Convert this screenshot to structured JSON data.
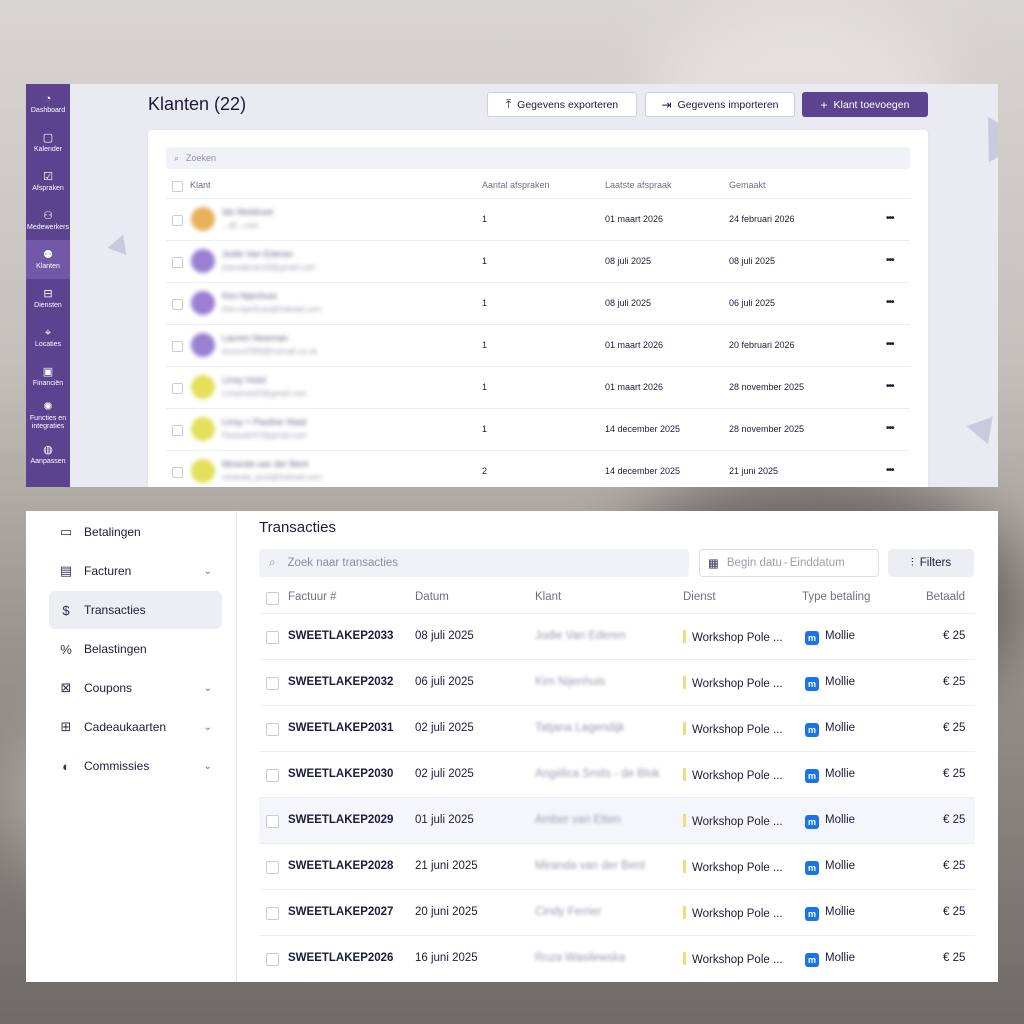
{
  "klanten_panel": {
    "sidebar": [
      {
        "icon": "dashboard-icon",
        "glyph": "◔",
        "label": "Dashboard"
      },
      {
        "icon": "calendar-icon",
        "glyph": "▢",
        "label": "Kalender"
      },
      {
        "icon": "checklist-icon",
        "glyph": "☑",
        "label": "Afspraken"
      },
      {
        "icon": "workers-icon",
        "glyph": "⚇",
        "label": "Medewerkers"
      },
      {
        "icon": "clients-icon",
        "glyph": "⚉",
        "label": "Klanten",
        "active": true
      },
      {
        "icon": "bag-icon",
        "glyph": "⊟",
        "label": "Diensten"
      },
      {
        "icon": "location-pin-icon",
        "glyph": "⌖",
        "label": "Locaties"
      },
      {
        "icon": "money-icon",
        "glyph": "▣",
        "label": "Financiën"
      },
      {
        "icon": "bulb-icon",
        "glyph": "✺",
        "label": "Functies en integraties"
      },
      {
        "icon": "palette-icon",
        "glyph": "◍",
        "label": "Aanpassen"
      }
    ],
    "title": "Klanten (22)",
    "buttons": {
      "export": "Gegevens exporteren",
      "import": "Gegevens importeren",
      "add": "Klant toevoegen"
    },
    "search_placeholder": "Zoeken",
    "columns": [
      "Klant",
      "Aantal afspraken",
      "Laatste afspraak",
      "Gemaakt"
    ],
    "rows": [
      {
        "name": "Ido Moldover",
        "email": "...@...com",
        "count": "1",
        "last": "01 maart 2026",
        "created": "24 februari 2026",
        "avatar_color": "#e8b15a"
      },
      {
        "name": "Jodie Van Ederen",
        "email": "joanederen18@gmail.com",
        "count": "1",
        "last": "08 juli 2025",
        "created": "08 juli 2025",
        "avatar_color": "#9a7fd3"
      },
      {
        "name": "Kim Nijenhuis",
        "email": "Kim-nijenhuis@hotmail.com",
        "count": "1",
        "last": "08 juli 2025",
        "created": "06 juli 2025",
        "avatar_color": "#9a7fd3"
      },
      {
        "name": "Lauren Newman",
        "email": "lauren2399@hotmail.co.uk",
        "count": "1",
        "last": "01 maart 2026",
        "created": "20 februari 2026",
        "avatar_color": "#9a7fd3"
      },
      {
        "name": "Linsy Hulst",
        "email": "Linsyhulst2@gmail.com",
        "count": "1",
        "last": "01 maart 2026",
        "created": "28 november 2025",
        "avatar_color": "#e3e05a"
      },
      {
        "name": "Linsy + Pauline Staal",
        "email": "Ppstaal247@gmail.com",
        "count": "1",
        "last": "14 december 2025",
        "created": "28 november 2025",
        "avatar_color": "#e3e05a"
      },
      {
        "name": "Miranda van der Bent",
        "email": "miranda_pool@hotmail.com",
        "count": "2",
        "last": "14 december 2025",
        "created": "21 juni 2025",
        "avatar_color": "#e3e05a"
      }
    ]
  },
  "transacties_panel": {
    "nav": [
      {
        "icon": "payments-icon",
        "glyph": "▭",
        "label": "Betalingen",
        "chevron": false
      },
      {
        "icon": "invoice-icon",
        "glyph": "▤",
        "label": "Facturen",
        "chevron": true
      },
      {
        "icon": "dollar-icon",
        "glyph": "$",
        "label": "Transacties",
        "chevron": false,
        "active": true
      },
      {
        "icon": "percent-icon",
        "glyph": "%",
        "label": "Belastingen",
        "chevron": false
      },
      {
        "icon": "coupon-icon",
        "glyph": "⊠",
        "label": "Coupons",
        "chevron": true
      },
      {
        "icon": "giftcard-icon",
        "glyph": "⊞",
        "label": "Cadeaukaarten",
        "chevron": true
      },
      {
        "icon": "commission-icon",
        "glyph": "◐",
        "label": "Commissies",
        "chevron": true
      }
    ],
    "chevron_glyph": "⌄",
    "title": "Transacties",
    "search_placeholder": "Zoek naar transacties",
    "date_start_placeholder": "Begin datu",
    "date_end_placeholder": "Einddatum",
    "filters_label": "Filters",
    "columns": [
      "Factuur #",
      "Datum",
      "Klant",
      "Dienst",
      "Type betaling",
      "Betaald"
    ],
    "rows": [
      {
        "invoice": "SWEETLAKEP2033",
        "date": "08 juli 2025",
        "client": "Jodie Van Ederen",
        "service": "Workshop Pole ...",
        "payment": "Mollie",
        "paid": "€ 25"
      },
      {
        "invoice": "SWEETLAKEP2032",
        "date": "06 juli 2025",
        "client": "Kim Nijenhuis",
        "service": "Workshop Pole ...",
        "payment": "Mollie",
        "paid": "€ 25"
      },
      {
        "invoice": "SWEETLAKEP2031",
        "date": "02 juli 2025",
        "client": "Tatjana Lagendijk",
        "service": "Workshop Pole ...",
        "payment": "Mollie",
        "paid": "€ 25"
      },
      {
        "invoice": "SWEETLAKEP2030",
        "date": "02 juli 2025",
        "client": "Angélica Smits - de Blok",
        "service": "Workshop Pole ...",
        "payment": "Mollie",
        "paid": "€ 25"
      },
      {
        "invoice": "SWEETLAKEP2029",
        "date": "01 juli 2025",
        "client": "Amber van Etten",
        "service": "Workshop Pole ...",
        "payment": "Mollie",
        "paid": "€ 25",
        "highlight": true
      },
      {
        "invoice": "SWEETLAKEP2028",
        "date": "21 juni 2025",
        "client": "Miranda van der Bent",
        "service": "Workshop Pole ...",
        "payment": "Mollie",
        "paid": "€ 25"
      },
      {
        "invoice": "SWEETLAKEP2027",
        "date": "20 juni 2025",
        "client": "Cindy Ferrier",
        "service": "Workshop Pole ...",
        "payment": "Mollie",
        "paid": "€ 25"
      },
      {
        "invoice": "SWEETLAKEP2026",
        "date": "16 juni 2025",
        "client": "Roza Wasilewska",
        "service": "Workshop Pole ...",
        "payment": "Mollie",
        "paid": "€ 25"
      }
    ],
    "accent_color": "#5b4390"
  }
}
